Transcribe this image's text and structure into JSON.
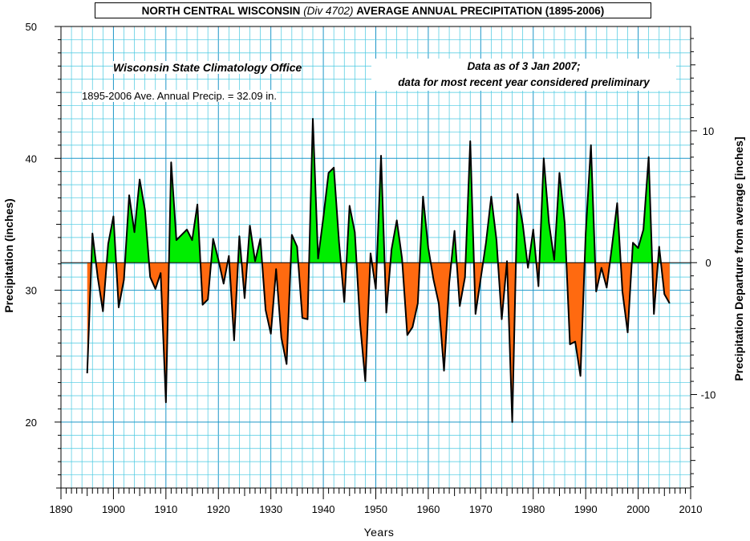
{
  "title": {
    "region": "NORTH CENTRAL WISCONSIN",
    "division": "(Div 4702)",
    "measure": "AVERAGE ANNUAL PRECIPITATION (1895-2006)"
  },
  "notes": {
    "source": "Wisconsin State Climatology Office",
    "average": "1895-2006 Ave. Annual Precip. = 32.09 in.",
    "data_line1": "Data as of 3 Jan 2007;",
    "data_line2": "data for most recent year considered preliminary"
  },
  "colors": {
    "grid_minor": "#46c8e0",
    "grid_major": "#1e96c8",
    "above_fill": "#00ee00",
    "below_fill": "#ff6a10",
    "line": "#000000"
  },
  "chart_data": {
    "type": "area",
    "xlabel": "Years",
    "ylabel": "Precipitation  (inches)",
    "y2label": "Precipitation Departure from average [inches]",
    "xlim": [
      1890,
      2010
    ],
    "ylim": [
      15,
      50
    ],
    "y2lim": [
      -17.09,
      17.91
    ],
    "baseline": 32.09,
    "x_ticks": [
      "1890",
      "1900",
      "1910",
      "1920",
      "1930",
      "1940",
      "1950",
      "1960",
      "1970",
      "1980",
      "1990",
      "2000",
      "2010"
    ],
    "y_ticks": [
      "20",
      "30",
      "40",
      "50"
    ],
    "y2_ticks": [
      "10",
      "0",
      "-10"
    ],
    "grid": true,
    "x": [
      1895,
      1896,
      1897,
      1898,
      1899,
      1900,
      1901,
      1902,
      1903,
      1904,
      1905,
      1906,
      1907,
      1908,
      1909,
      1910,
      1911,
      1912,
      1913,
      1914,
      1915,
      1916,
      1917,
      1918,
      1919,
      1920,
      1921,
      1922,
      1923,
      1924,
      1925,
      1926,
      1927,
      1928,
      1929,
      1930,
      1931,
      1932,
      1933,
      1934,
      1935,
      1936,
      1937,
      1938,
      1939,
      1940,
      1941,
      1942,
      1943,
      1944,
      1945,
      1946,
      1947,
      1948,
      1949,
      1950,
      1951,
      1952,
      1953,
      1954,
      1955,
      1956,
      1957,
      1958,
      1959,
      1960,
      1961,
      1962,
      1963,
      1964,
      1965,
      1966,
      1967,
      1968,
      1969,
      1970,
      1971,
      1972,
      1973,
      1974,
      1975,
      1976,
      1977,
      1978,
      1979,
      1980,
      1981,
      1982,
      1983,
      1984,
      1985,
      1986,
      1987,
      1988,
      1989,
      1990,
      1991,
      1992,
      1993,
      1994,
      1995,
      1996,
      1997,
      1998,
      1999,
      2000,
      2001,
      2002,
      2003,
      2004,
      2005,
      2006
    ],
    "values": [
      23.7,
      34.3,
      31.0,
      28.4,
      33.5,
      35.6,
      28.7,
      30.8,
      37.2,
      34.4,
      38.4,
      36.1,
      31.0,
      30.1,
      31.3,
      21.5,
      39.7,
      33.8,
      34.2,
      34.6,
      33.8,
      36.5,
      28.9,
      29.3,
      33.9,
      32.3,
      30.5,
      32.6,
      26.2,
      34.1,
      29.4,
      34.9,
      32.2,
      33.9,
      28.5,
      26.7,
      31.6,
      26.4,
      24.4,
      34.2,
      33.3,
      27.9,
      27.8,
      43.0,
      32.4,
      35.5,
      38.9,
      39.3,
      33.6,
      29.1,
      36.4,
      34.4,
      27.5,
      23.1,
      32.8,
      30.1,
      40.2,
      28.3,
      33.1,
      35.3,
      32.4,
      26.6,
      27.2,
      29.0,
      37.1,
      33.2,
      30.8,
      29.0,
      23.9,
      30.6,
      34.5,
      28.8,
      31.0,
      41.3,
      28.2,
      30.9,
      33.6,
      37.1,
      33.8,
      27.8,
      32.2,
      20.0,
      37.3,
      35.0,
      31.7,
      34.6,
      30.3,
      40.0,
      35.1,
      32.3,
      38.9,
      35.1,
      25.9,
      26.1,
      23.5,
      34.3,
      41.0,
      29.9,
      31.7,
      30.2,
      33.3,
      36.6,
      29.9,
      26.8,
      33.6,
      33.2,
      34.6,
      40.1,
      28.2,
      33.3,
      29.7,
      29.0
    ]
  }
}
